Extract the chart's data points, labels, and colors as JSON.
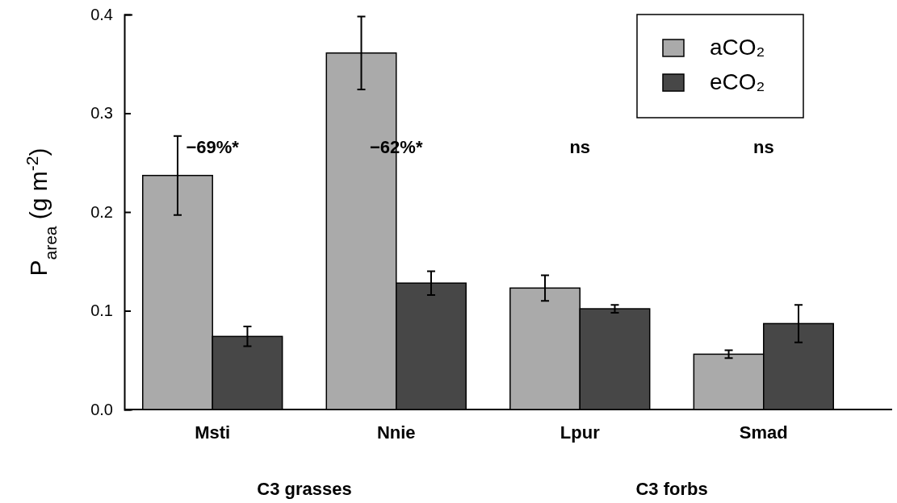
{
  "chart_data": {
    "type": "bar",
    "ylabel": "P$_{area}$ (g m$^{-2}$)",
    "categories": [
      "Msti",
      "Nnie",
      "Lpur",
      "Smad"
    ],
    "series": [
      {
        "name": "aCO₂",
        "color": "#aaaaaa",
        "values": [
          0.237,
          0.361,
          0.123,
          0.056
        ],
        "errors": [
          0.04,
          0.037,
          0.013,
          0.004
        ]
      },
      {
        "name": "eCO₂",
        "color": "#474747",
        "values": [
          0.074,
          0.128,
          0.102,
          0.087
        ],
        "errors": [
          0.01,
          0.012,
          0.004,
          0.019
        ]
      }
    ],
    "ylim": [
      0,
      0.4
    ],
    "yticks": [
      {
        "value": 0,
        "label": "0.0"
      },
      0.1,
      0.2,
      0.3,
      0.4
    ],
    "grid": false,
    "legend": "top right",
    "annotations": [
      "−69%*",
      "−62%*",
      "ns",
      "ns",
      "C3 grasses",
      "C3 forbs"
    ]
  }
}
